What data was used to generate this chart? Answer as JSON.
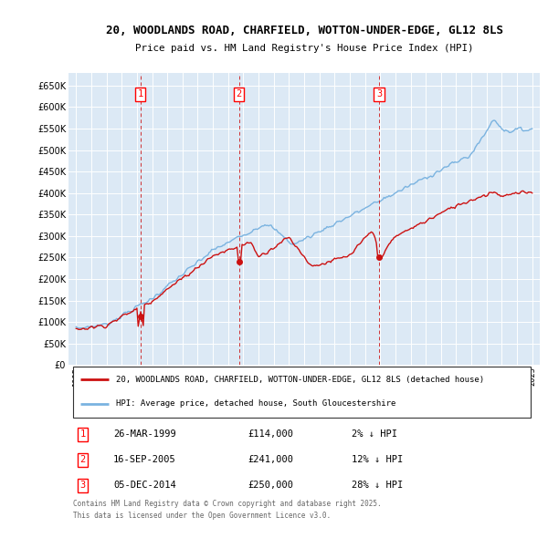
{
  "title_line1": "20, WOODLANDS ROAD, CHARFIELD, WOTTON-UNDER-EDGE, GL12 8LS",
  "title_line2": "Price paid vs. HM Land Registry's House Price Index (HPI)",
  "background_color": "#dce9f5",
  "grid_color": "#ffffff",
  "red_line_label": "20, WOODLANDS ROAD, CHARFIELD, WOTTON-UNDER-EDGE, GL12 8LS (detached house)",
  "blue_line_label": "HPI: Average price, detached house, South Gloucestershire",
  "transactions": [
    {
      "num": 1,
      "date": "26-MAR-1999",
      "price": 114000,
      "hpi_diff": "2% ↓ HPI",
      "year": 1999.23
    },
    {
      "num": 2,
      "date": "16-SEP-2005",
      "price": 241000,
      "hpi_diff": "12% ↓ HPI",
      "year": 2005.71
    },
    {
      "num": 3,
      "date": "05-DEC-2014",
      "price": 250000,
      "hpi_diff": "28% ↓ HPI",
      "year": 2014.93
    }
  ],
  "footnote": "Contains HM Land Registry data © Crown copyright and database right 2025.\nThis data is licensed under the Open Government Licence v3.0.",
  "yticks": [
    0,
    50000,
    100000,
    150000,
    200000,
    250000,
    300000,
    350000,
    400000,
    450000,
    500000,
    550000,
    600000,
    650000
  ],
  "ylim": [
    0,
    680000
  ],
  "xlim_start": 1994.5,
  "xlim_end": 2025.5
}
